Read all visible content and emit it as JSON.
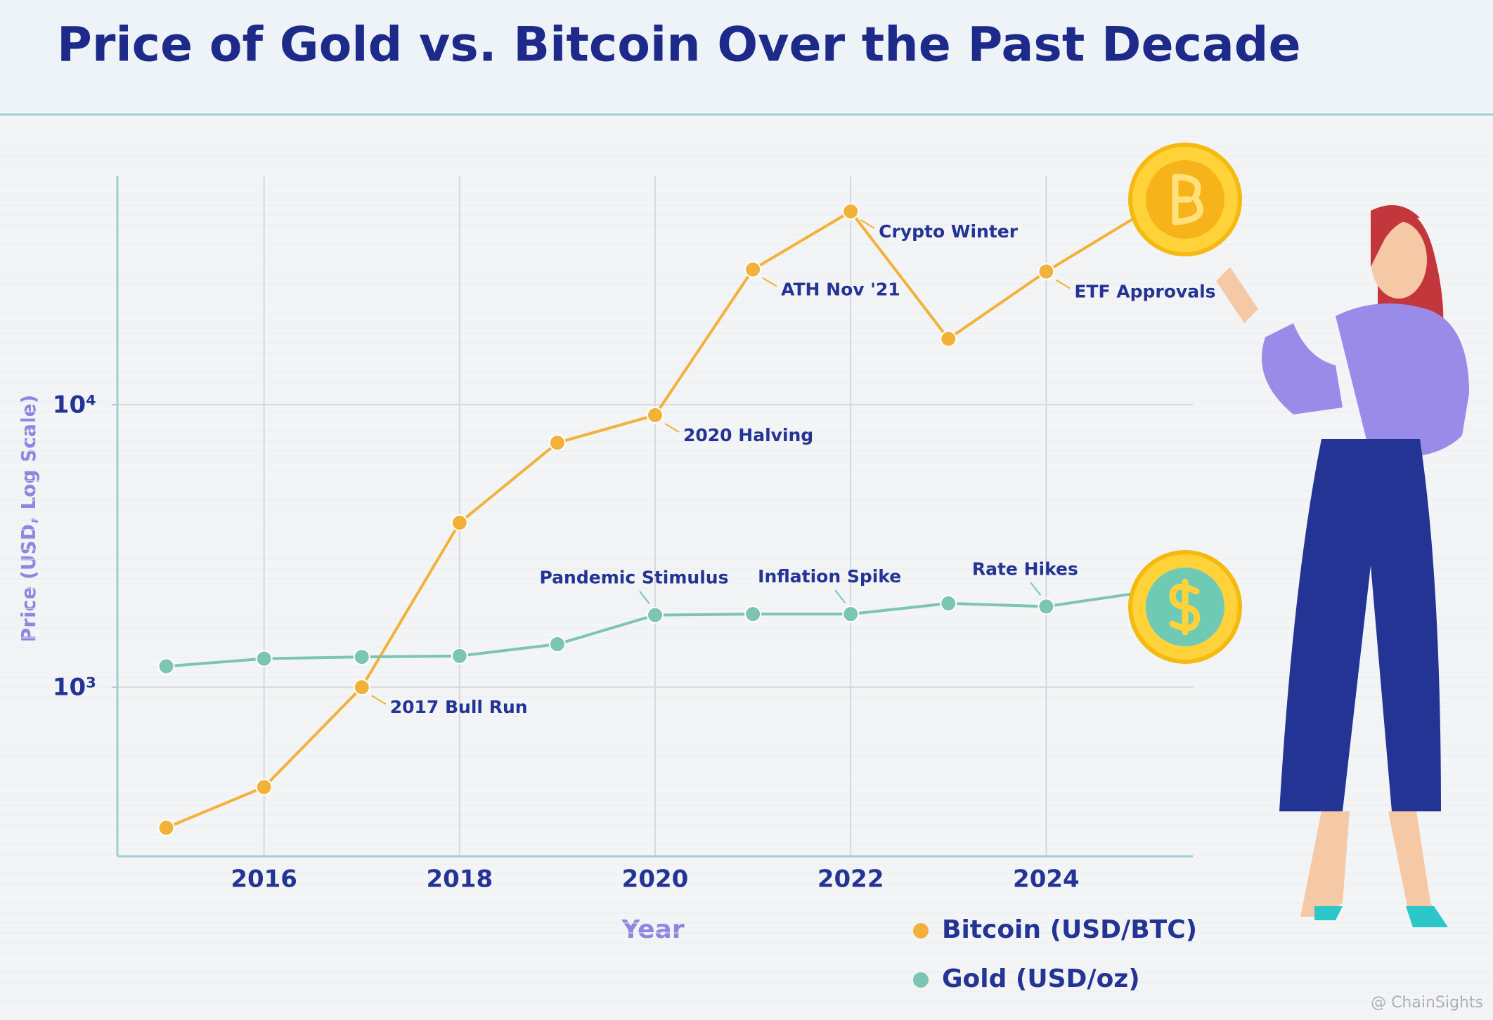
{
  "chart_data": {
    "type": "line",
    "title": "Price of Gold vs. Bitcoin Over the Past Decade",
    "x_label": "Year",
    "y_label": "Price (USD, Log Scale)",
    "x": [
      2015,
      2016,
      2017,
      2018,
      2019,
      2020,
      2021,
      2022,
      2023,
      2024,
      2025
    ],
    "series": [
      {
        "name": "Bitcoin (USD/BTC)",
        "color": "#f2b23a",
        "values": [
          318,
          443,
          1000,
          3820,
          7330,
          9180,
          30100,
          48300,
          17100,
          29600,
          48000
        ],
        "annotations": [
          {
            "text": "2017 Bull Run",
            "x": 2017
          },
          {
            "text": "2020 Halving",
            "x": 2020
          },
          {
            "text": "ATH Nov '21",
            "x": 2021
          },
          {
            "text": "Crypto Winter",
            "x": 2022
          },
          {
            "text": "ETF Approvals",
            "x": 2024
          }
        ]
      },
      {
        "name": "Gold (USD/oz)",
        "color": "#7cc4b4",
        "values": [
          1186,
          1262,
          1280,
          1290,
          1420,
          1800,
          1815,
          1815,
          1980,
          1930,
          2170
        ],
        "annotations": [
          {
            "text": "Pandemic Stimulus",
            "x": 2020
          },
          {
            "text": "Inflation Spike",
            "x": 2022
          },
          {
            "text": "Rate Hikes",
            "x": 2024
          }
        ]
      }
    ],
    "xlim": [
      2014.5,
      2025.5
    ],
    "xticks": [
      2016,
      2018,
      2020,
      2022,
      2024
    ],
    "ylim": [
      252,
      64300
    ],
    "yticks": [
      {
        "value": 1000,
        "label": "10³"
      },
      {
        "value": 10000,
        "label": "10⁴"
      }
    ],
    "y_scale": "log",
    "grid": true,
    "legend": "bottom",
    "watermark": "@ ChainSights"
  }
}
